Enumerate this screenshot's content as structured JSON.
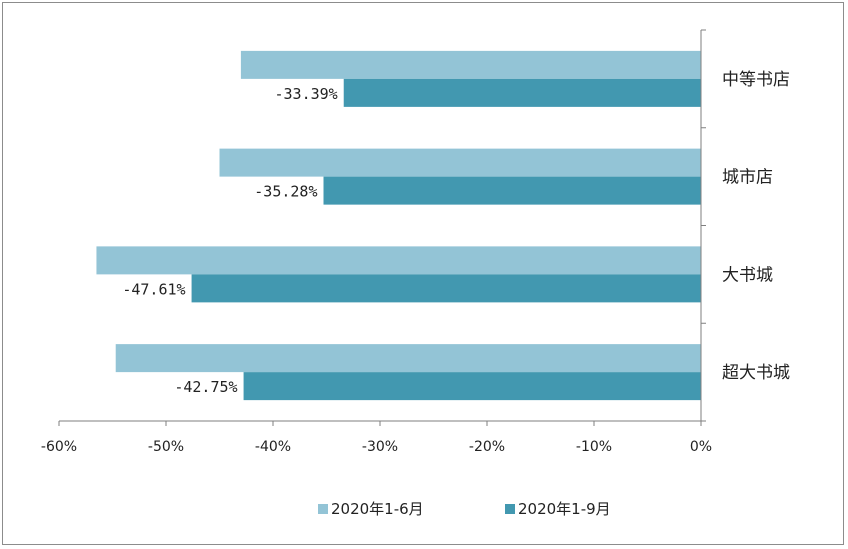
{
  "chart_data": {
    "type": "bar",
    "orientation": "horizontal",
    "categories": [
      "中等书店",
      "城市店",
      "大书城",
      "超大书城"
    ],
    "series": [
      {
        "name": "2020年1-6月",
        "values": [
          -43.0,
          -45.0,
          -56.5,
          -54.7
        ],
        "color": "#93c4d6"
      },
      {
        "name": "2020年1-9月",
        "values": [
          -33.39,
          -35.28,
          -47.61,
          -42.75
        ],
        "color": "#4298b0"
      }
    ],
    "data_labels": [
      "-33.39%",
      "-35.28%",
      "-47.61%",
      "-42.75%"
    ],
    "xticks": [
      "-60%",
      "-50%",
      "-40%",
      "-30%",
      "-20%",
      "-10%",
      "0%"
    ],
    "xlim": [
      -60,
      0
    ],
    "legend_position": "bottom",
    "grid": false,
    "title": "",
    "xlabel": "",
    "ylabel": ""
  }
}
